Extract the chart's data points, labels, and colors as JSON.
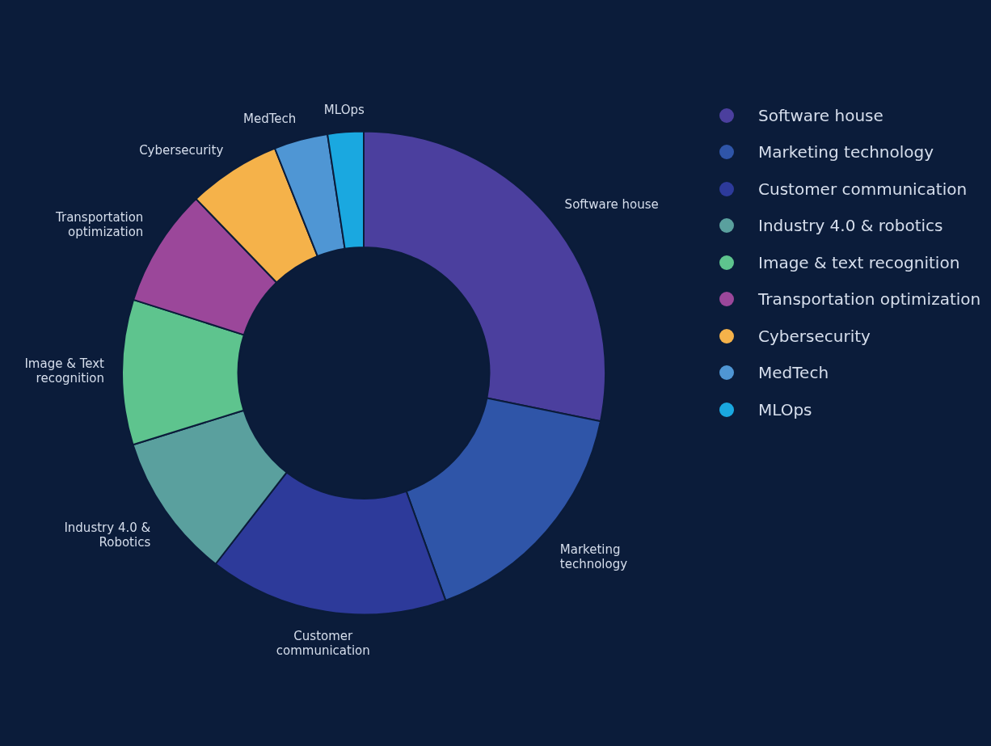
{
  "chart_data": {
    "type": "donut",
    "categories": [
      "Software house",
      "Marketing technology",
      "Customer communication",
      "Industry 4.0 & robotics",
      "Image & text recognition",
      "Transportation optimization",
      "Cybersecurity",
      "MedTech",
      "MLOps"
    ],
    "values": [
      28.2,
      16.3,
      16.0,
      9.7,
      9.7,
      7.9,
      6.2,
      3.6,
      2.4
    ],
    "colors": [
      "#4b3f9e",
      "#2f55a8",
      "#2d3a9a",
      "#5aa09e",
      "#5ec48e",
      "#9b479a",
      "#f5b24a",
      "#4f96d4",
      "#1aa8e0"
    ],
    "annotations": [
      "Software house",
      "Marketing technology",
      "Customer communication",
      "Industry 4.0 & Robotics",
      "Image & Text recognition",
      "Transportation optimization",
      "Cybersecurity",
      "MedTech",
      "MLOps"
    ],
    "legend": "top right"
  }
}
